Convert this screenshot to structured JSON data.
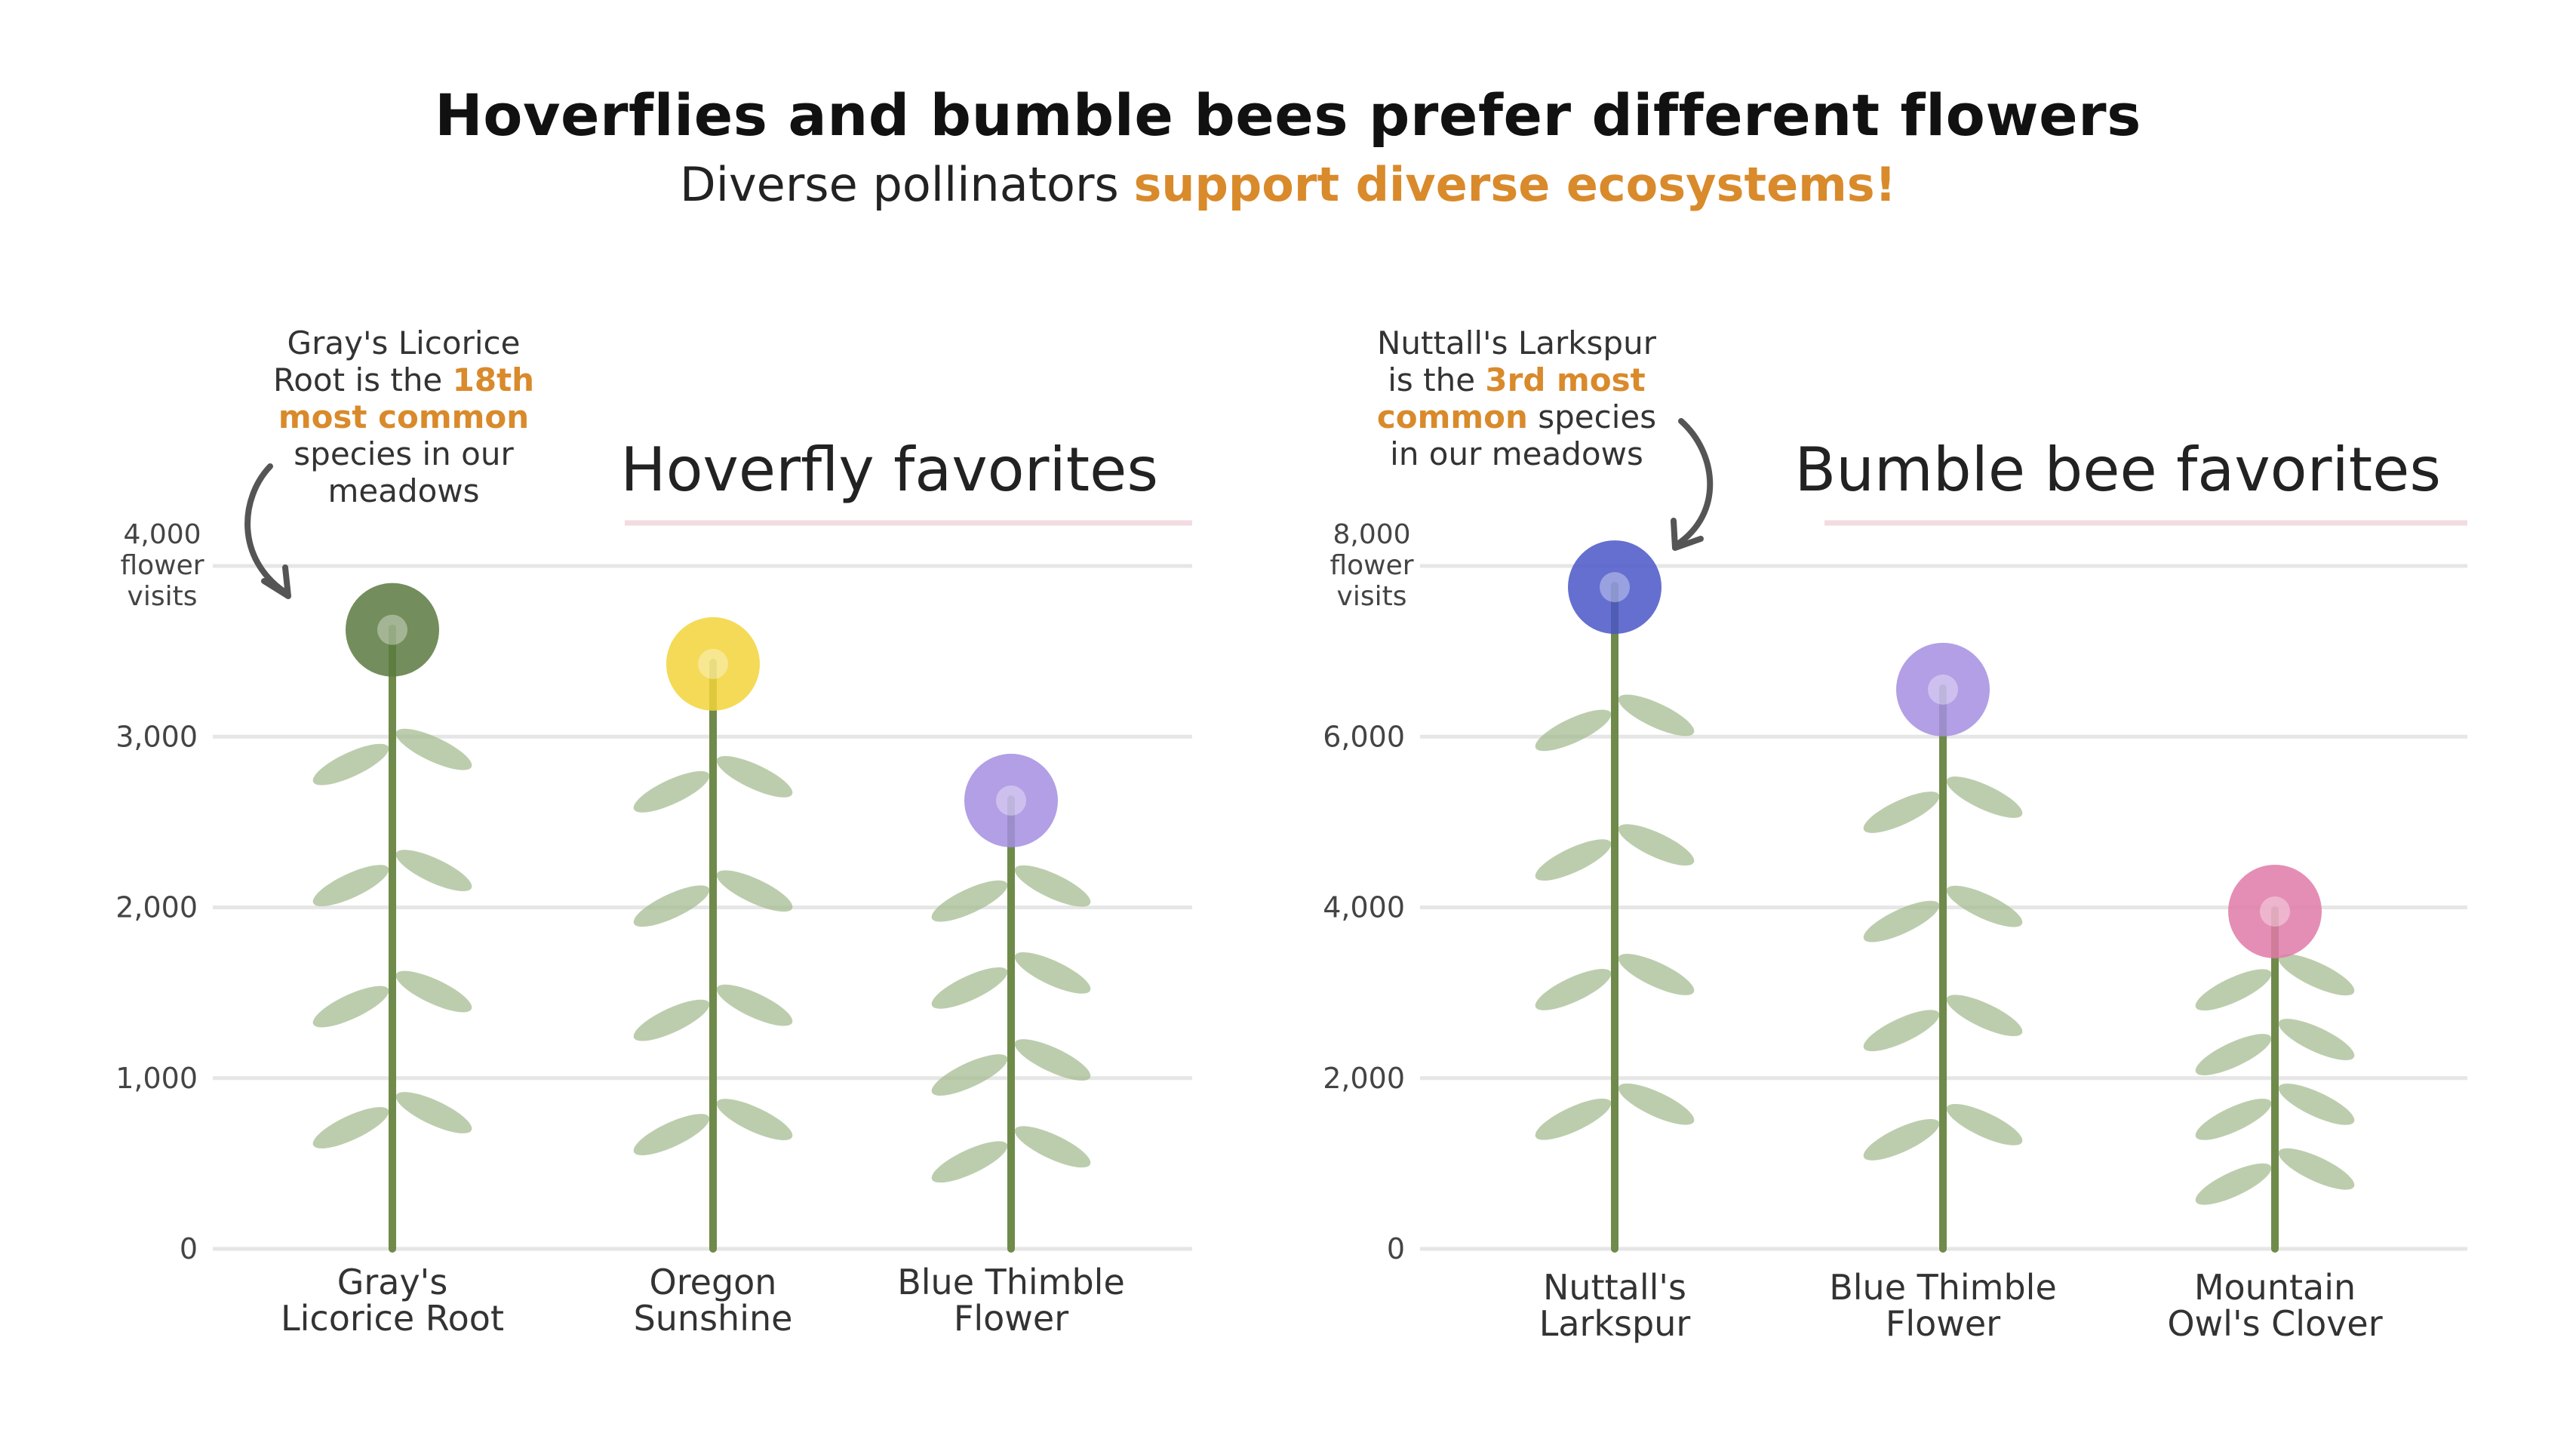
{
  "title": "Hoverflies and bumble bees prefer different flowers",
  "subtitle": {
    "prefix": "Diverse pollinators ",
    "highlight": "support diverse ecosystems!"
  },
  "colors": {
    "accent": "#d98a2b",
    "grid": "#e6e6e6",
    "header_underline": "#f2dbe1",
    "text": "#222222"
  },
  "annotations": {
    "hoverfly": {
      "line1": "Gray's Licorice",
      "line2a": "Root is the ",
      "line2b": "18th",
      "line3": "most common",
      "line4": "species in our",
      "line5": "meadows"
    },
    "bumblebee": {
      "line1": "Nuttall's Larkspur",
      "line2a": "is the ",
      "line2b": "3rd most",
      "line3a": "common",
      "line3b": " species",
      "line4": "in our meadows"
    }
  },
  "chart_data": [
    {
      "type": "bar",
      "title": "Hoverfly favorites",
      "ylabel": "4,000\nflower\nvisits",
      "ylim": [
        0,
        4000
      ],
      "yticks": [
        0,
        1000,
        2000,
        3000,
        4000
      ],
      "ytick_labels": [
        "0",
        "1,000",
        "2,000",
        "3,000",
        "4,000"
      ],
      "categories": [
        "Gray's\nLicorice Root",
        "Oregon\nSunshine",
        "Blue Thimble\nFlower"
      ],
      "values": [
        3900,
        3700,
        2900
      ],
      "bar_style": "illustrated flowers",
      "colors": [
        "#5b7a3f",
        "#f2d43a",
        "#a58ee0"
      ]
    },
    {
      "type": "bar",
      "title": "Bumble bee favorites",
      "ylabel": "8,000\nflower\nvisits",
      "ylim": [
        0,
        8000
      ],
      "yticks": [
        0,
        2000,
        4000,
        6000,
        8000
      ],
      "ytick_labels": [
        "0",
        "2,000",
        "4,000",
        "6,000",
        "8,000"
      ],
      "categories": [
        "Nuttall's\nLarkspur",
        "Blue Thimble\nFlower",
        "Mountain\nOwl's Clover"
      ],
      "values": [
        8300,
        7100,
        4500
      ],
      "bar_style": "illustrated flowers",
      "colors": [
        "#4a56c7",
        "#a58ee0",
        "#e07aa8"
      ]
    }
  ]
}
